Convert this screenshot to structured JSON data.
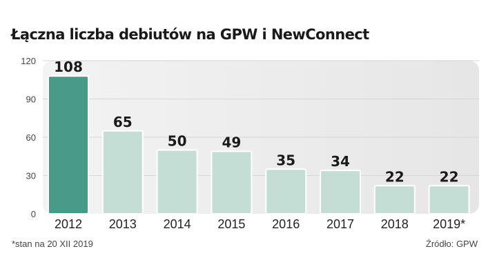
{
  "title": "Łączna liczba debiutów na GPW i NewConnect",
  "footnote": "*stan na 20  XII 2019",
  "source": "Źródło: GPW",
  "colors": {
    "highlight_bar": "#4a9a89",
    "bar": "#c4ded5",
    "bar_stroke": "#ffffff",
    "panel": "#ebebeb"
  },
  "chart_data": {
    "type": "bar",
    "categories": [
      "2012",
      "2013",
      "2014",
      "2015",
      "2016",
      "2017",
      "2018",
      "2019*"
    ],
    "values": [
      108,
      65,
      50,
      49,
      35,
      34,
      22,
      22
    ],
    "data_labels": [
      "108",
      "65",
      "50",
      "49",
      "35",
      "34",
      "22",
      "22"
    ],
    "yticks": [
      "0",
      "30",
      "60",
      "90",
      "120"
    ],
    "ylim": [
      0,
      120
    ],
    "highlight_index": 0,
    "grid": true
  }
}
